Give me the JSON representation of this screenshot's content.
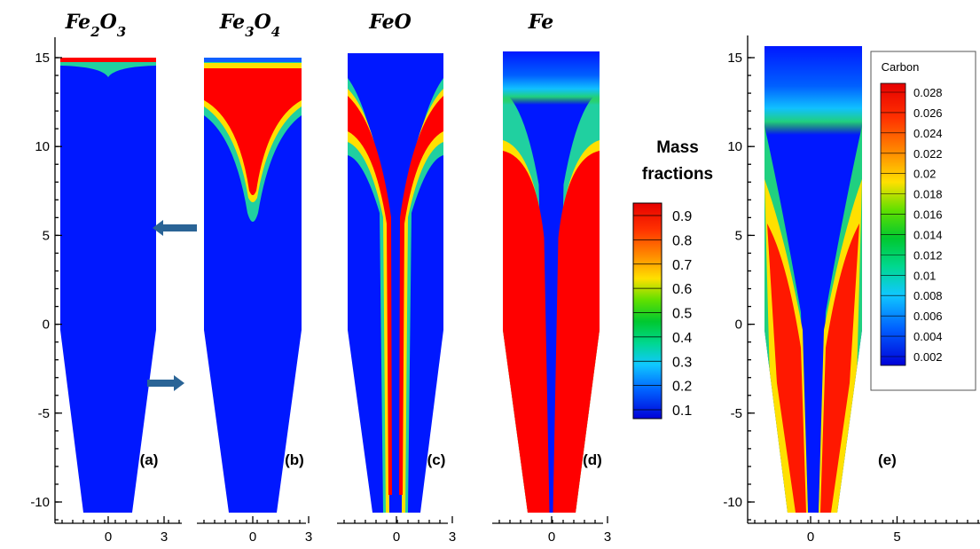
{
  "chart_data": [
    {
      "type": "heatmap",
      "panel_label": "(a)",
      "title": "Fe2O3",
      "title_parts": [
        {
          "t": "Fe",
          "sub": false
        },
        {
          "t": "2",
          "sub": true
        },
        {
          "t": "O",
          "sub": false
        },
        {
          "t": "3",
          "sub": true
        }
      ],
      "yticks": [
        15,
        10,
        5,
        0,
        -5,
        -10
      ],
      "xticks": [
        0,
        3
      ],
      "ylim": [
        -11,
        16
      ],
      "xlim": [
        -3.5,
        4
      ],
      "variable": "Mass fractions",
      "field_desc": "near zero everywhere; thin high layer at the top surface (y≈15)"
    },
    {
      "type": "heatmap",
      "panel_label": "(b)",
      "title": "Fe3O4",
      "title_parts": [
        {
          "t": "Fe",
          "sub": false
        },
        {
          "t": "3",
          "sub": true
        },
        {
          "t": "O",
          "sub": false
        },
        {
          "t": "4",
          "sub": true
        }
      ],
      "yticks": [],
      "xticks": [
        0,
        3
      ],
      "ylim": [
        -11,
        16
      ],
      "xlim": [
        -3.5,
        4
      ],
      "variable": "Mass fractions",
      "field_desc": "high (~0.9) in top region, V-shaped core extending down to y≈6"
    },
    {
      "type": "heatmap",
      "panel_label": "(c)",
      "title": "FeO",
      "title_parts": [
        {
          "t": "FeO",
          "sub": false
        }
      ],
      "yticks": [],
      "xticks": [
        0,
        3
      ],
      "ylim": [
        -11,
        16
      ],
      "xlim": [
        -3.5,
        4
      ],
      "variable": "Mass fractions",
      "field_desc": "high band along V-shaped front near walls at y≈11-14 and a central core column below y≈7"
    },
    {
      "type": "heatmap",
      "panel_label": "(d)",
      "title": "Fe",
      "title_parts": [
        {
          "t": "Fe",
          "sub": false
        }
      ],
      "yticks": [],
      "xticks": [
        0,
        3
      ],
      "ylim": [
        -11,
        16
      ],
      "xlim": [
        -3.5,
        4
      ],
      "variable": "Mass fractions",
      "field_desc": "high (~0.9) filling lower region below y≈9 except a narrow central channel"
    },
    {
      "type": "heatmap",
      "panel_label": "(e)",
      "title": "",
      "yticks": [
        15,
        10,
        5,
        0,
        -5,
        -10
      ],
      "xticks": [
        0,
        5
      ],
      "ylim": [
        -11,
        16
      ],
      "xlim": [
        -3.5,
        9
      ],
      "variable": "Carbon",
      "field_desc": "near-wall bands rising to ~0.028 below y≈5, low in center and top"
    }
  ],
  "shared_colorbar": {
    "title": [
      "Mass",
      "fractions"
    ],
    "labels": [
      "0.9",
      "0.8",
      "0.7",
      "0.6",
      "0.5",
      "0.4",
      "0.3",
      "0.2",
      "0.1"
    ]
  },
  "carbon_colorbar": {
    "title": "Carbon",
    "labels": [
      "0.028",
      "0.026",
      "0.024",
      "0.022",
      "0.02",
      "0.018",
      "0.016",
      "0.014",
      "0.012",
      "0.01",
      "0.008",
      "0.006",
      "0.004",
      "0.002"
    ]
  },
  "colors": {
    "low": "#0018ff",
    "high": "#ff0000",
    "ramp": [
      "#0000dd",
      "#0030ff",
      "#0a78ff",
      "#14c8ff",
      "#00e0b0",
      "#00c832",
      "#3cdc00",
      "#b4f000",
      "#ffdc00",
      "#ff8c00",
      "#ff2800",
      "#e60000"
    ],
    "arrow": "#2a6496"
  }
}
